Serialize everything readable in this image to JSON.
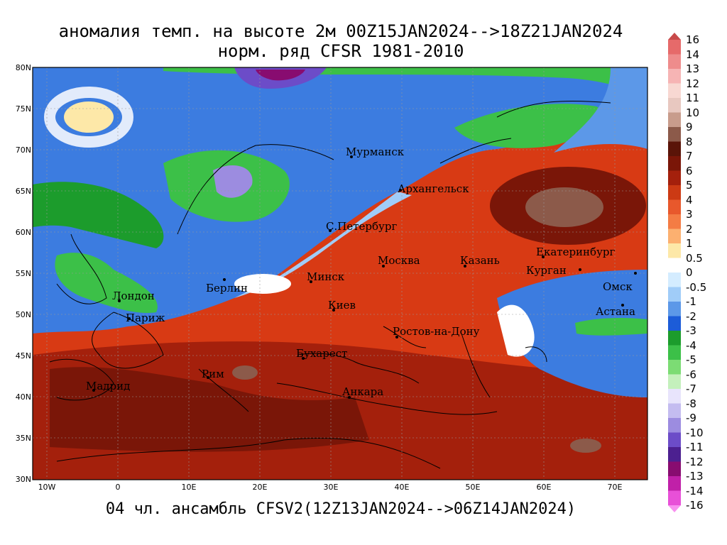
{
  "title_line1": "аномалия темп. на высоте 2м 00Z15JAN2024-->18Z21JAN2024",
  "title_line2": "норм. ряд CFSR 1981-2010",
  "bottom_title": "04 чл. ансамбль CFSV2(12Z13JAN2024-->06Z14JAN2024)",
  "lat_labels": [
    "80N",
    "75N",
    "70N",
    "65N",
    "60N",
    "55N",
    "50N",
    "45N",
    "40N",
    "35N",
    "30N"
  ],
  "lon_labels": [
    "10W",
    "0",
    "10E",
    "20E",
    "30E",
    "40E",
    "50E",
    "60E",
    "70E"
  ],
  "colorbar": {
    "labels": [
      "16",
      "14",
      "13",
      "12",
      "11",
      "10",
      "9",
      "8",
      "7",
      "6",
      "5",
      "4",
      "3",
      "2",
      "1",
      "0.5",
      "0",
      "-0.5",
      "-1",
      "-2",
      "-3",
      "-4",
      "-5",
      "-6",
      "-7",
      "-8",
      "-9",
      "-10",
      "-11",
      "-12",
      "-13",
      "-14",
      "-16"
    ],
    "colors": [
      "#c84a4a",
      "#e66a6a",
      "#ee8c8c",
      "#f6b4b4",
      "#f8d8d2",
      "#e8c8c0",
      "#c89c8c",
      "#8c5a4a",
      "#5a1408",
      "#7a1608",
      "#a4200c",
      "#cc3a14",
      "#e8582c",
      "#f47c44",
      "#fcb070",
      "#fde8a8",
      "#ffffff",
      "#d4ecff",
      "#a0ccf8",
      "#5c98e8",
      "#1c5cd8",
      "#1c9c2c",
      "#3cc048",
      "#7cdc74",
      "#c4f0bc",
      "#e8e4fc",
      "#c4bcf0",
      "#9c8ce0",
      "#6c4cc8",
      "#4c2090",
      "#880c70",
      "#c020a8",
      "#e850d8",
      "#f890f0"
    ]
  },
  "cities": [
    {
      "name": "Мурманск"
    },
    {
      "name": "Архангельск"
    },
    {
      "name": "С.Петербург"
    },
    {
      "name": "Москва"
    },
    {
      "name": "Казань"
    },
    {
      "name": "Екатеринбург"
    },
    {
      "name": "Курган"
    },
    {
      "name": "Омск"
    },
    {
      "name": "Астана"
    },
    {
      "name": "Минск"
    },
    {
      "name": "Берлин"
    },
    {
      "name": "Лондон"
    },
    {
      "name": "Париж"
    },
    {
      "name": "Киев"
    },
    {
      "name": "Ростов-на-Дону"
    },
    {
      "name": "Бухарест"
    },
    {
      "name": "Рим"
    },
    {
      "name": "Мадрид"
    },
    {
      "name": "Анкара"
    }
  ]
}
